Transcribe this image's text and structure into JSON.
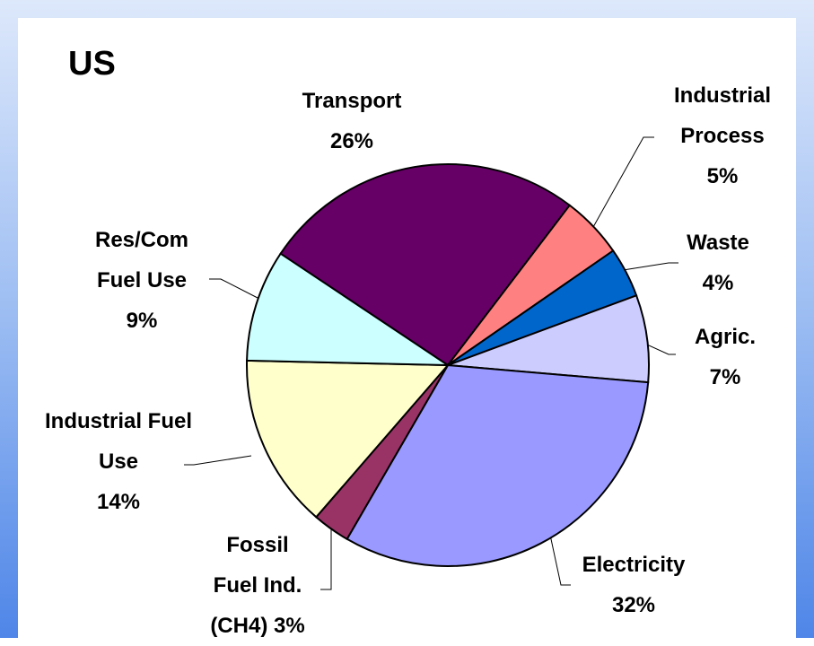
{
  "chart_data": {
    "type": "pie",
    "title": "US",
    "categories": [
      "Transport",
      "Industrial Process",
      "Waste",
      "Agric.",
      "Electricity",
      "Fossil Fuel Ind. (CH4)",
      "Industrial Fuel Use",
      "Res/Com Fuel Use"
    ],
    "values": [
      26,
      5,
      4,
      7,
      32,
      3,
      14,
      9
    ],
    "value_labels": [
      "26%",
      "5%",
      "4%",
      "7%",
      "32%",
      "3%",
      "14%",
      "9%"
    ],
    "colors": [
      "#660066",
      "#ff8080",
      "#0066cc",
      "#ccccff",
      "#9999ff",
      "#993366",
      "#ffffcc",
      "#ccffff"
    ]
  }
}
